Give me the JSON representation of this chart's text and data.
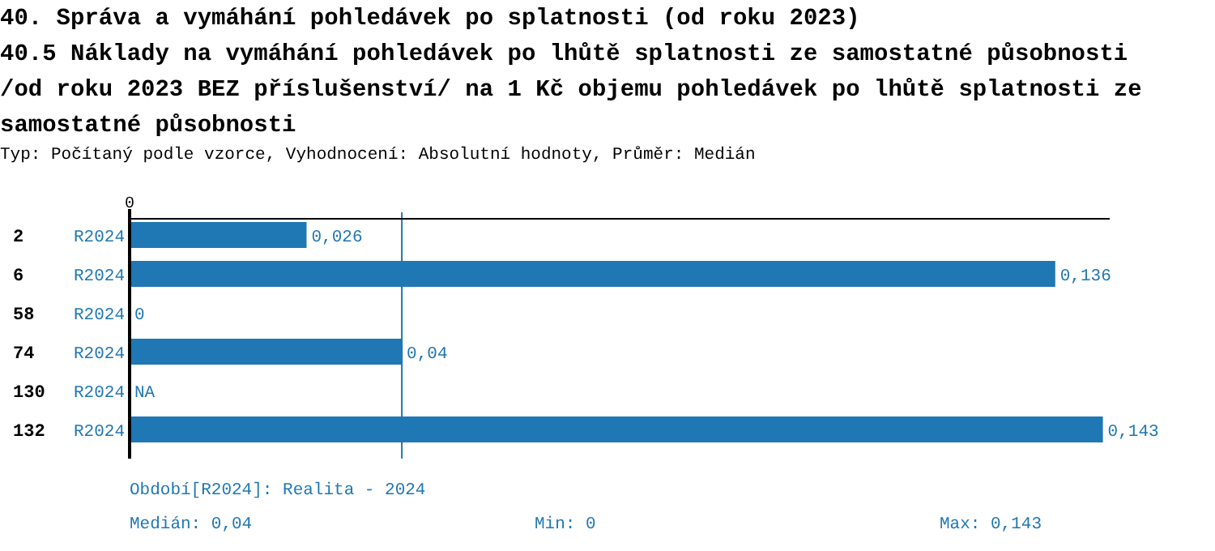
{
  "chart_data": {
    "type": "bar",
    "orientation": "horizontal",
    "title": "40. Správa a vymáhání pohledávek po splatnosti (od roku 2023)",
    "subtitle": "40.5 Náklady na vymáhání pohledávek po lhůtě splatnosti ze samostatné působnosti /od roku 2023 BEZ příslušenství/ na 1 Kč objemu pohledávek po lhůtě splatnosti ze samostatné působnosti",
    "categories": [
      "2",
      "6",
      "58",
      "74",
      "130",
      "132"
    ],
    "series": [
      {
        "name": "R2024",
        "color": "#1f77b4",
        "values": [
          0.026,
          0.136,
          0,
          0.04,
          null,
          0.143
        ],
        "value_labels": [
          "0,026",
          "0,136",
          "0",
          "0,04",
          "NA",
          "0,143"
        ]
      }
    ],
    "xlim": [
      0,
      0.144
    ],
    "ref_lines": [
      {
        "axis": "x",
        "value": 0.04,
        "color": "#1f77b4"
      }
    ],
    "annotations": [
      "Typ: Počítaný podle vzorce, Vyhodnocení: Absolutní hodnoty, Průměr: Medián",
      "Období[R2024]: Realita - 2024",
      "Medián: 0,04",
      "Min: 0",
      "Max: 0,143",
      "0"
    ]
  }
}
